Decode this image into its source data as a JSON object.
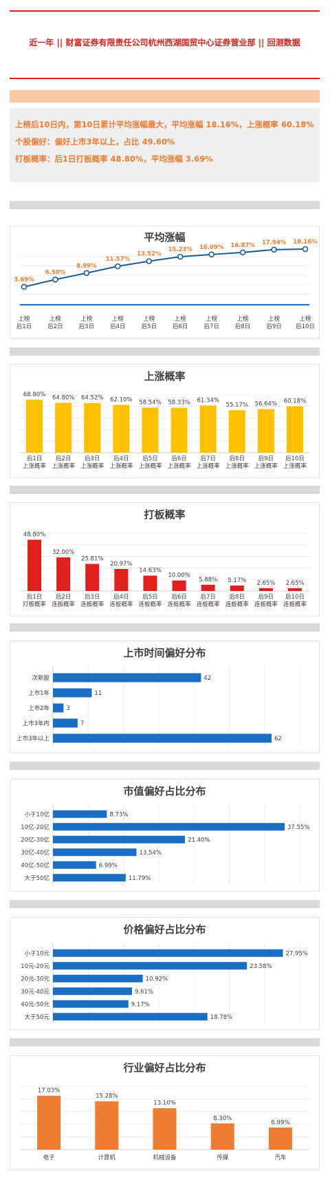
{
  "header": {
    "title": "近一年  ||  财富证券有限责任公司杭州西湖国贸中心证券营业部  ||  回测数据"
  },
  "summary": [
    "上榜后10日内，第10日累计平均涨幅最大，平均涨幅 18.16%，上涨概率 60.18%",
    "个股偏好：偏好上市3年以上，占比 49.60%",
    "打板概率：后1日打板概率 48.80%，平均涨幅 3.69%"
  ],
  "colors": {
    "accent": "#e0201c",
    "orange": "#ee7d31",
    "yellow": "#ffc000",
    "red": "#e0201c",
    "blue": "#1a6fc4",
    "grey": "#d9d9d9",
    "peach": "#f8c9a7"
  },
  "chart_data": [
    {
      "type": "line",
      "title": "平均涨幅",
      "categories": [
        "上榜\n后1日",
        "上榜\n后2日",
        "上榜\n后3日",
        "上榜\n后4日",
        "上榜\n后5日",
        "上榜\n后6日",
        "上榜\n后7日",
        "上榜\n后8日",
        "上榜\n后9日",
        "上榜\n后10日"
      ],
      "values": [
        3.69,
        6.5,
        8.99,
        11.57,
        13.52,
        15.23,
        16.09,
        16.87,
        17.94,
        18.16
      ],
      "labels": [
        "3.69%",
        "6.50%",
        "8.99%",
        "11.57%",
        "13.52%",
        "15.23%",
        "16.09%",
        "16.87%",
        "17.94%",
        "18.16%"
      ],
      "ylim": [
        0,
        20
      ]
    },
    {
      "type": "bar",
      "title": "上涨概率",
      "categories": [
        "后1日\n上涨概率",
        "后2日\n上涨概率",
        "后3日\n上涨概率",
        "后4日\n上涨概率",
        "后5日\n上涨概率",
        "后6日\n上涨概率",
        "后7日\n上涨概率",
        "后8日\n上涨概率",
        "后9日\n上涨概率",
        "后10日\n上涨概率"
      ],
      "values": [
        68.8,
        64.8,
        64.52,
        62.1,
        58.54,
        58.33,
        61.34,
        55.17,
        56.64,
        60.18
      ],
      "labels": [
        "68.80%",
        "64.80%",
        "64.52%",
        "62.10%",
        "58.54%",
        "58.33%",
        "61.34%",
        "55.17%",
        "56.64%",
        "60.18%"
      ],
      "ylim": [
        0,
        75
      ]
    },
    {
      "type": "bar",
      "title": "打板概率",
      "categories": [
        "后1日\n打板概率",
        "后2日\n连板概率",
        "后3日\n连板概率",
        "后4日\n连板概率",
        "后5日\n连板概率",
        "后6日\n连板概率",
        "后7日\n连板概率",
        "后8日\n连板概率",
        "后9日\n连板概率",
        "后10日\n连板概率"
      ],
      "values": [
        48.8,
        32.0,
        25.81,
        20.97,
        14.63,
        10.0,
        5.88,
        5.17,
        2.65,
        2.65
      ],
      "labels": [
        "48.80%",
        "32.00%",
        "25.81%",
        "20.97%",
        "14.63%",
        "10.00%",
        "5.88%",
        "5.17%",
        "2.65%",
        "2.65%"
      ],
      "ylim": [
        0,
        55
      ]
    },
    {
      "type": "bar",
      "orientation": "horizontal",
      "title": "上市时间偏好分布",
      "categories": [
        "次新股",
        "上市1年",
        "上市2年",
        "上市3年内",
        "上市3年以上"
      ],
      "values": [
        42,
        11,
        3,
        7,
        62
      ],
      "labels": [
        "42",
        "11",
        "3",
        "7",
        "62"
      ],
      "xlim": [
        0,
        70
      ]
    },
    {
      "type": "bar",
      "orientation": "horizontal",
      "title": "市值偏好占比分布",
      "categories": [
        "小于10亿",
        "10亿-20亿",
        "20亿-30亿",
        "30亿-40亿",
        "40亿-50亿",
        "大于50亿"
      ],
      "values": [
        8.73,
        37.55,
        21.4,
        13.54,
        6.99,
        11.79
      ],
      "labels": [
        "8.73%",
        "37.55%",
        "21.40%",
        "13.54%",
        "6.99%",
        "11.79%"
      ],
      "xlim": [
        0,
        40
      ]
    },
    {
      "type": "bar",
      "orientation": "horizontal",
      "title": "价格偏好占比分布",
      "categories": [
        "小于10元",
        "10元-20元",
        "20元-30元",
        "30元-40元",
        "40元-50元",
        "大于50元"
      ],
      "values": [
        27.95,
        23.58,
        10.92,
        9.61,
        9.17,
        18.78
      ],
      "labels": [
        "27.95%",
        "23.58%",
        "10.92%",
        "9.61%",
        "9.17%",
        "18.78%"
      ],
      "xlim": [
        0,
        30
      ]
    },
    {
      "type": "bar",
      "title": "行业偏好占比分布",
      "categories": [
        "电子",
        "计算机",
        "机械设备",
        "传媒",
        "汽车"
      ],
      "values": [
        17.03,
        15.28,
        13.1,
        8.3,
        6.99
      ],
      "labels": [
        "17.03%",
        "15.28%",
        "13.10%",
        "8.30%",
        "6.99%"
      ],
      "ylim": [
        0,
        20
      ]
    }
  ]
}
